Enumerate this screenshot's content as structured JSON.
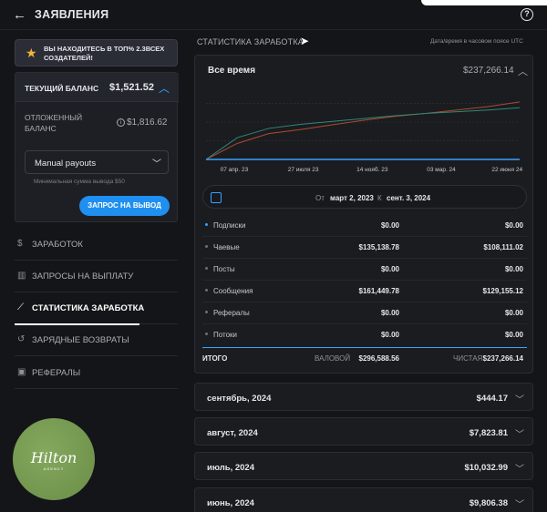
{
  "header": {
    "back_icon": "arrow-left-icon",
    "title": "ЗАЯВЛЕНИЯ",
    "help_icon": "question-circle-icon"
  },
  "sidebar": {
    "banner": {
      "icon": "star-icon",
      "text_line1": "ВЫ НАХОДИТЕСЬ В ТОП% 2.3ВСЕХ",
      "text_line2": "СОЗДАТЕЛЕЙ!"
    },
    "balance": {
      "current_label": "ТЕКУЩИЙ БАЛАНС",
      "current_value": "$1,521.52",
      "pending_label_line1": "ОТЛОЖЕННЫЙ",
      "pending_label_line2": "БАЛАНС",
      "pending_value": "$1,816.62",
      "payout_select": "Manual payouts",
      "min_withdraw": "Минимальная сумма вывода $50",
      "withdraw_button": "ЗАПРОС НА ВЫВОД"
    },
    "nav": [
      {
        "label": "ЗАРАБОТОК",
        "icon": "dollar-circle-icon"
      },
      {
        "label": "ЗАПРОСЫ НА ВЫПЛАТУ",
        "icon": "bank-icon"
      },
      {
        "label": "СТАТИСТИКА ЗАРАБОТКА",
        "icon": "chart-line-icon",
        "active": true
      },
      {
        "label": "ЗАРЯДНЫЕ ВОЗВРАТЫ",
        "icon": "refund-icon"
      },
      {
        "label": "РЕФЕРАЛЫ",
        "icon": "user-card-icon"
      }
    ],
    "logo": {
      "text": "Hilton",
      "sub": "AGENCY"
    }
  },
  "main": {
    "section_title": "СТАТИСТИКА ЗАРАБОТКА",
    "timezone_note": "Дата/время в часовом поясе UTC",
    "stats": {
      "period_label": "Все время",
      "period_total": "$237,266.14",
      "date_from_prefix": "От",
      "date_from": "март 2, 2023",
      "date_to_prefix": "К",
      "date_to": "сент. 3, 2024",
      "rows": [
        {
          "label": "Подписки",
          "gross": "$0.00",
          "net": "$0.00",
          "color": "#3aa0ff"
        },
        {
          "label": "Чаевые",
          "gross": "$135,138.78",
          "net": "$108,111.02",
          "color": "#6b6f78"
        },
        {
          "label": "Посты",
          "gross": "$0.00",
          "net": "$0.00",
          "color": "#6b6f78"
        },
        {
          "label": "Сообщения",
          "gross": "$161,449.78",
          "net": "$129,155.12",
          "color": "#6b6f78"
        },
        {
          "label": "Рефералы",
          "gross": "$0.00",
          "net": "$0.00",
          "color": "#6b6f78"
        },
        {
          "label": "Потоки",
          "gross": "$0.00",
          "net": "$0.00",
          "color": "#6b6f78"
        }
      ],
      "total_label": "ИТОГО",
      "gross_label": "ВАЛОВОЙ",
      "gross_total": "$296,588.56",
      "net_label": "ЧИСТАЯ",
      "net_total": "$237,266.14"
    },
    "months": [
      {
        "label": "сентябрь, 2024",
        "amount": "$444.17"
      },
      {
        "label": "август, 2024",
        "amount": "$7,823.81"
      },
      {
        "label": "июль, 2024",
        "amount": "$10,032.99"
      },
      {
        "label": "июнь, 2024",
        "amount": "$9,806.38"
      }
    ]
  },
  "chart_data": {
    "type": "line",
    "x_ticks": [
      "07 апр. 23",
      "27 июля 23",
      "14 нояб. 23",
      "03 мар. 24",
      "22 июня 24"
    ],
    "x": [
      0,
      0.1,
      0.2,
      0.3,
      0.4,
      0.5,
      0.6,
      0.7,
      0.8,
      0.9,
      1.0
    ],
    "series": [
      {
        "values": [
          0,
          28,
          45,
          52,
          60,
          68,
          75,
          80,
          86,
          92,
          100
        ],
        "color": "#b04a2c"
      },
      {
        "values": [
          0,
          38,
          54,
          61,
          66,
          71,
          76,
          80,
          83,
          86,
          90
        ],
        "color": "#2d8a7a"
      },
      {
        "values": [
          0,
          0,
          0,
          0,
          0,
          0,
          0,
          0,
          0,
          0,
          0
        ],
        "color": "#3aa0ff"
      }
    ],
    "ylim": [
      0,
      130
    ],
    "grid": true
  }
}
